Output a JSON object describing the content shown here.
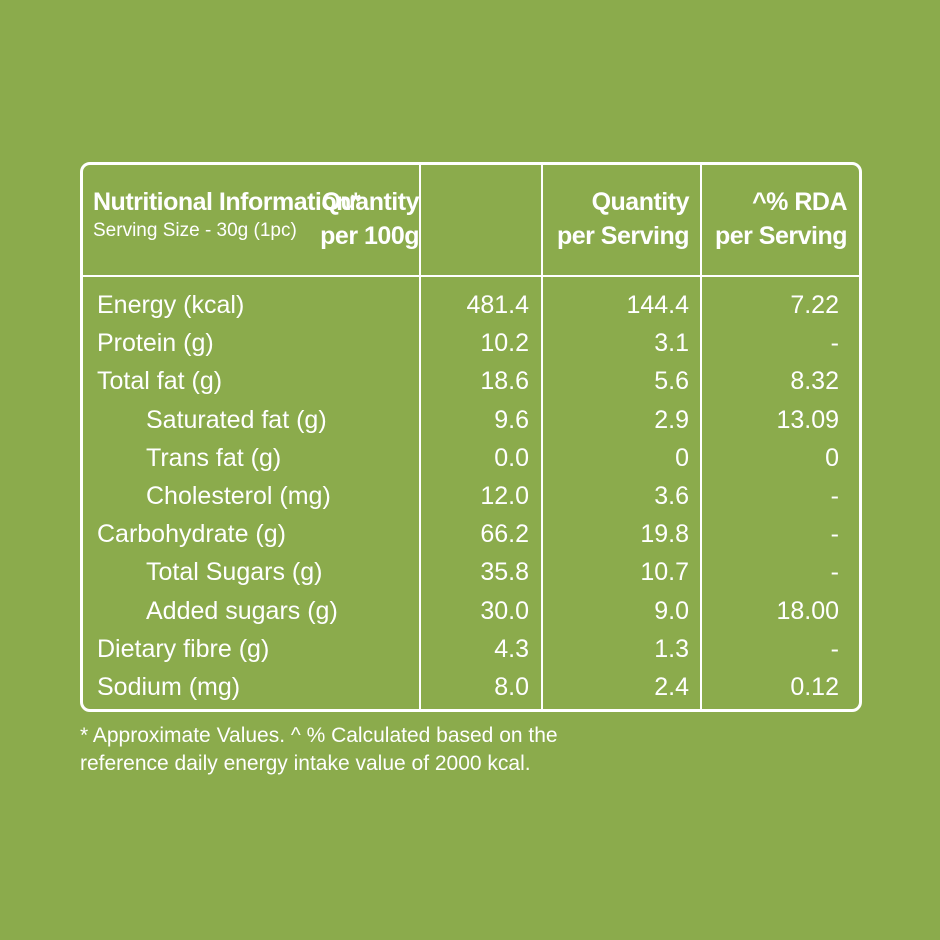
{
  "header": {
    "title": "Nutritional Information*",
    "serving_size": "Serving Size - 30g (1pc)",
    "col1": [
      "Quantity",
      "per 100g"
    ],
    "col2": [
      "Quantity",
      "per Serving"
    ],
    "col3": [
      "^% RDA",
      "per Serving"
    ]
  },
  "rows": [
    {
      "name": "Energy (kcal)",
      "per_100g": "481.4",
      "per_serving": "144.4",
      "rda": "7.22",
      "indent": false
    },
    {
      "name": "Protein (g)",
      "per_100g": "10.2",
      "per_serving": "3.1",
      "rda": "-",
      "indent": false
    },
    {
      "name": "Total fat (g)",
      "per_100g": "18.6",
      "per_serving": "5.6",
      "rda": "8.32",
      "indent": false
    },
    {
      "name": "Saturated fat (g)",
      "per_100g": "9.6",
      "per_serving": "2.9",
      "rda": "13.09",
      "indent": true
    },
    {
      "name": "Trans fat (g)",
      "per_100g": "0.0",
      "per_serving": "0",
      "rda": "0",
      "indent": true
    },
    {
      "name": "Cholesterol (mg)",
      "per_100g": "12.0",
      "per_serving": "3.6",
      "rda": "-",
      "indent": true
    },
    {
      "name": "Carbohydrate (g)",
      "per_100g": "66.2",
      "per_serving": "19.8",
      "rda": "-",
      "indent": false
    },
    {
      "name": "Total Sugars (g)",
      "per_100g": "35.8",
      "per_serving": "10.7",
      "rda": "-",
      "indent": true
    },
    {
      "name": "Added sugars (g)",
      "per_100g": "30.0",
      "per_serving": "9.0",
      "rda": "18.00",
      "indent": true
    },
    {
      "name": "Dietary fibre (g)",
      "per_100g": "4.3",
      "per_serving": "1.3",
      "rda": "-",
      "indent": false
    },
    {
      "name": "Sodium (mg)",
      "per_100g": "8.0",
      "per_serving": "2.4",
      "rda": "0.12",
      "indent": false
    }
  ],
  "footnote": [
    "* Approximate Values. ^ % Calculated based on the",
    "reference daily energy intake value of 2000 kcal."
  ],
  "colors": {
    "background": "#8bab4c",
    "text": "#ffffff"
  }
}
